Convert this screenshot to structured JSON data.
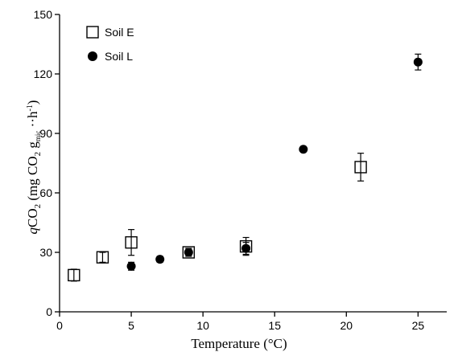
{
  "chart_data": {
    "type": "scatter",
    "xlabel": "Temperature (°C)",
    "ylabel_parts": {
      "q": "q",
      "co2_prefix": "CO",
      "co2_sub": "2",
      "units_open": " (mg CO",
      "units_sub": "2",
      "units_g": " g",
      "units_mic": "mic",
      "units_rest": " ·",
      "units_h": "·h",
      "units_exp": "-1",
      "units_close": ")"
    },
    "xlim": [
      0,
      27
    ],
    "ylim": [
      0,
      150
    ],
    "xticks": [
      0,
      5,
      10,
      15,
      20,
      25
    ],
    "yticks": [
      0,
      30,
      60,
      90,
      120,
      150
    ],
    "legend_position": "top-left",
    "series": [
      {
        "name": "Soil E",
        "marker": "open-square",
        "points": [
          {
            "x": 1,
            "y": 18.5,
            "err": 3
          },
          {
            "x": 3,
            "y": 27.5,
            "err": 2.5
          },
          {
            "x": 5,
            "y": 35,
            "err": 6.5
          },
          {
            "x": 9,
            "y": 30,
            "err": 2
          },
          {
            "x": 13,
            "y": 33,
            "err": 4.5
          },
          {
            "x": 21,
            "y": 73,
            "err": 7
          }
        ]
      },
      {
        "name": "Soil L",
        "marker": "filled-circle",
        "points": [
          {
            "x": 5,
            "y": 23,
            "err": 2
          },
          {
            "x": 7,
            "y": 26.5,
            "err": 1.5
          },
          {
            "x": 9,
            "y": 30,
            "err": 2
          },
          {
            "x": 13,
            "y": 32,
            "err": 3
          },
          {
            "x": 17,
            "y": 82,
            "err": 1
          },
          {
            "x": 25,
            "y": 126,
            "err": 4
          }
        ]
      }
    ]
  }
}
